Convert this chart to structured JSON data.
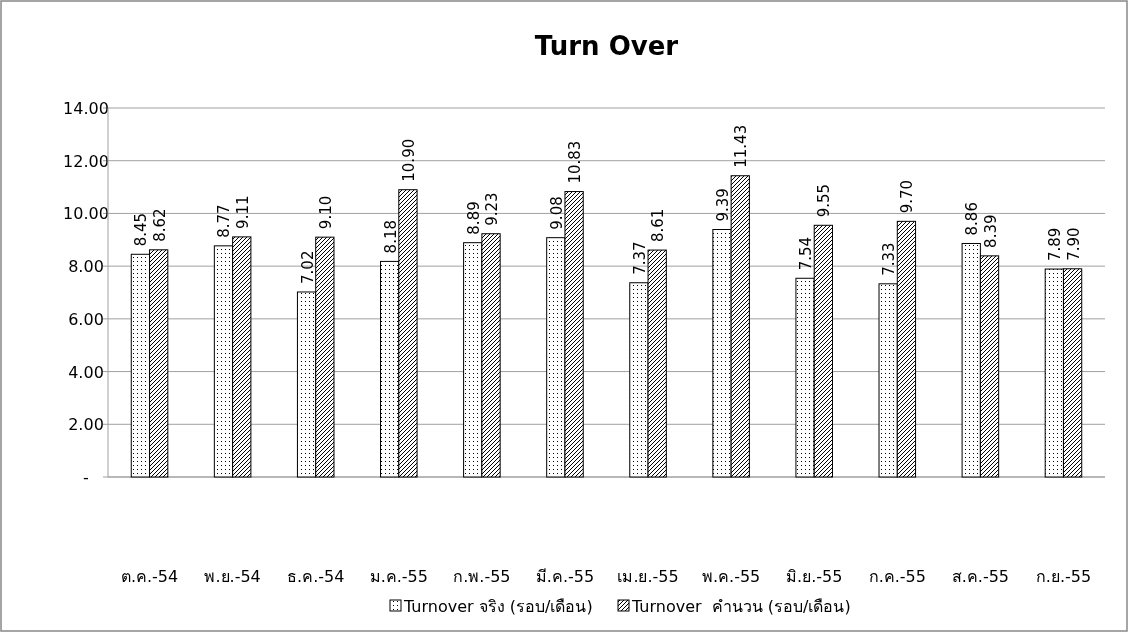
{
  "chart_data": {
    "type": "bar",
    "title": "Turn Over",
    "categories": [
      "ต.ค.-54",
      "พ.ย.-54",
      "ธ.ค.-54",
      "ม.ค.-55",
      "ก.พ.-55",
      "มี.ค.-55",
      "เม.ย.-55",
      "พ.ค.-55",
      "มิ.ย.-55",
      "ก.ค.-55",
      "ส.ค.-55",
      "ก.ย.-55"
    ],
    "series": [
      {
        "name": "Turnover จริง (รอบ/เดือน)",
        "color": "#000000",
        "values": [
          8.45,
          8.77,
          7.02,
          8.18,
          8.89,
          9.08,
          7.37,
          9.39,
          7.54,
          7.33,
          8.86,
          7.89
        ],
        "value_labels": [
          "8.45",
          "8.77",
          "7.02",
          "8.18",
          "8.89",
          "9.08",
          "7.37",
          "9.39",
          "7.54",
          "7.33",
          "8.86",
          "7.89"
        ]
      },
      {
        "name": "Turnover  คำนวน (รอบ/เดือน)",
        "color": "#000000",
        "values": [
          8.62,
          9.11,
          9.1,
          10.9,
          9.23,
          10.83,
          8.61,
          11.43,
          9.55,
          9.7,
          8.39,
          7.9
        ],
        "value_labels": [
          "8.62",
          "9.11",
          "9.10",
          "10.90",
          "9.23",
          "10.83",
          "8.61",
          "11.43",
          "9.55",
          "9.70",
          "8.39",
          "7.90"
        ]
      }
    ],
    "ylim": [
      0,
      14
    ],
    "yticks": [
      {
        "value": 0,
        "label": "-"
      },
      {
        "value": 2,
        "label": "2.00"
      },
      {
        "value": 4,
        "label": "4.00"
      },
      {
        "value": 6,
        "label": "6.00"
      },
      {
        "value": 8,
        "label": "8.00"
      },
      {
        "value": 10,
        "label": "10.00"
      },
      {
        "value": 12,
        "label": "12.00"
      },
      {
        "value": 14,
        "label": "14.00"
      }
    ],
    "grid": "y",
    "legend": "bottom"
  }
}
